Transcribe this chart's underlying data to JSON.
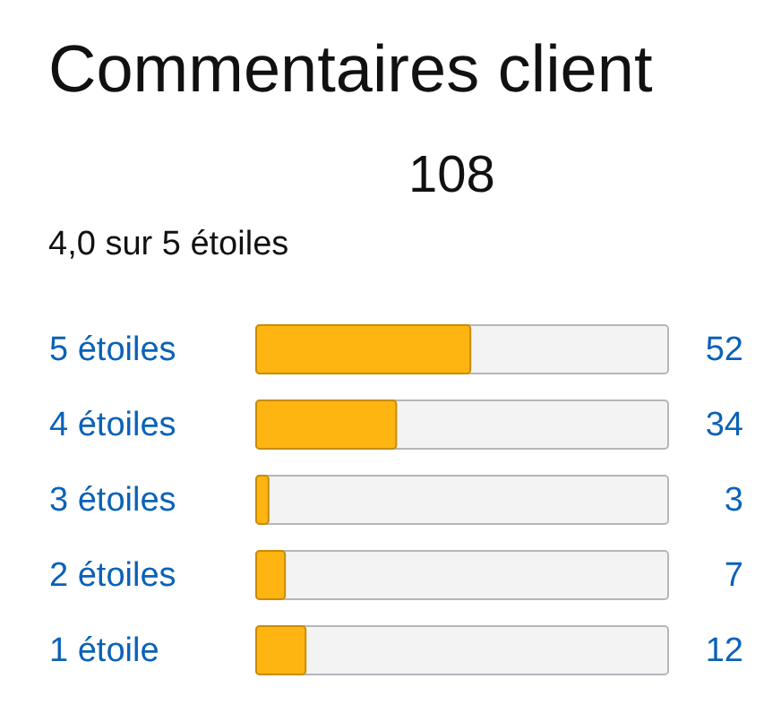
{
  "chart_data": {
    "type": "bar",
    "orientation": "horizontal",
    "title": "Commentaires client",
    "subtitle": "4,0 sur 5 étoiles",
    "annotations": [
      "108"
    ],
    "categories": [
      "5 étoiles",
      "4 étoiles",
      "3 étoiles",
      "2 étoiles",
      "1 étoile"
    ],
    "values": [
      52,
      34,
      3,
      7,
      12
    ],
    "color": "#ffb511",
    "xlim": [
      0,
      100
    ],
    "tick_labels": "y",
    "data_labels": true
  }
}
